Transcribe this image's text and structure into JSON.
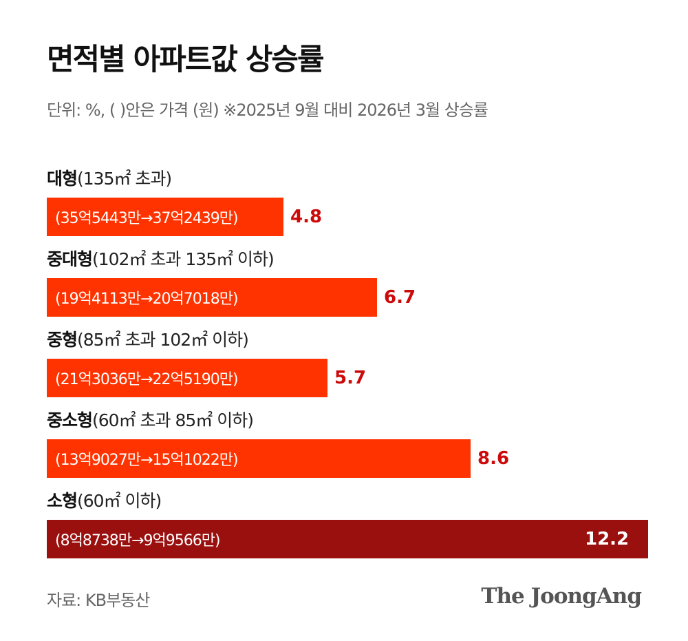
{
  "header": {
    "title": "면적별 아파트값 상승률",
    "subtitle": "단위: %, ( )안은 가격 (원) ※2025년 9월 대비 2026년 3월 상승률"
  },
  "footer": {
    "source": "자료: KB부동산",
    "logo": "The JoongAng"
  },
  "colors": {
    "bar": "#ff3300",
    "bar_highlight": "#99100f",
    "value": "#cc0a0a",
    "value_on_bar": "#ffffff"
  },
  "chart_data": {
    "type": "bar",
    "orientation": "horizontal",
    "title": "면적별 아파트값 상승률",
    "subtitle": "단위: %, ( )안은 가격 (원) ※2025년 9월 대비 2026년 3월 상승률",
    "xlim": [
      0,
      12.2
    ],
    "grid": false,
    "categories": [
      {
        "name": "대형",
        "range": "(135㎡ 초과)",
        "price": "(35억5443만→37억2439만)",
        "value": 4.8,
        "value_label": "4.8",
        "highlight": false
      },
      {
        "name": "중대형",
        "range": "(102㎡ 초과 135㎡ 이하)",
        "price": "(19억4113만→20억7018만)",
        "value": 6.7,
        "value_label": "6.7",
        "highlight": false
      },
      {
        "name": "중형",
        "range": "(85㎡ 초과 102㎡ 이하)",
        "price": "(21억3036만→22억5190만)",
        "value": 5.7,
        "value_label": "5.7",
        "highlight": false
      },
      {
        "name": "중소형",
        "range": "(60㎡ 초과 85㎡ 이하)",
        "price": "(13억9027만→15억1022만)",
        "value": 8.6,
        "value_label": "8.6",
        "highlight": false
      },
      {
        "name": "소형",
        "range": "(60㎡ 이하)",
        "price": "(8억8738만→9억9566만)",
        "value": 12.2,
        "value_label": "12.2",
        "highlight": true
      }
    ]
  }
}
